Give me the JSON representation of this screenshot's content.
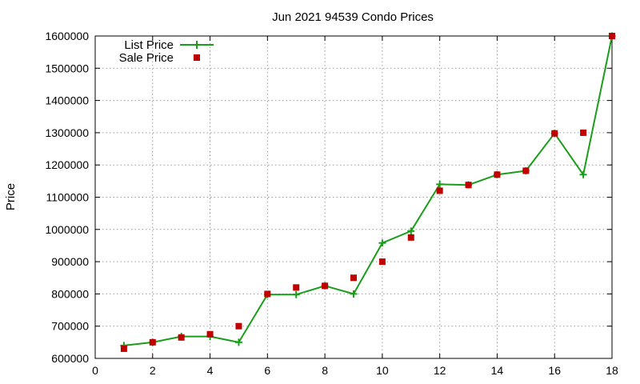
{
  "chart_data": {
    "type": "line",
    "title": "Jun 2021 94539 Condo Prices",
    "xlabel": "",
    "ylabel": "Price",
    "xlim": [
      0,
      18
    ],
    "ylim": [
      600000,
      1600000
    ],
    "x_ticks": [
      0,
      2,
      4,
      6,
      8,
      10,
      12,
      14,
      16,
      18
    ],
    "y_ticks": [
      600000,
      700000,
      800000,
      900000,
      1000000,
      1100000,
      1200000,
      1300000,
      1400000,
      1500000,
      1600000
    ],
    "grid": true,
    "legend_position": "top-left",
    "series": [
      {
        "name": "List Price",
        "style": "line+plus-markers",
        "color": "#1a9e1a",
        "x": [
          1,
          2,
          3,
          4,
          5,
          6,
          7,
          8,
          9,
          10,
          11,
          12,
          13,
          14,
          15,
          16,
          17,
          18
        ],
        "values": [
          640000,
          650000,
          668000,
          668000,
          650000,
          798000,
          798000,
          825000,
          800000,
          958000,
          995000,
          1140000,
          1138000,
          1170000,
          1182000,
          1298000,
          1170000,
          1600000
        ]
      },
      {
        "name": "Sale Price",
        "style": "square-markers",
        "color": "#c00000",
        "x": [
          1,
          2,
          3,
          4,
          5,
          6,
          7,
          8,
          9,
          10,
          11,
          12,
          13,
          14,
          15,
          16,
          17,
          18
        ],
        "values": [
          630000,
          650000,
          665000,
          675000,
          700000,
          800000,
          820000,
          825000,
          850000,
          900000,
          975000,
          1120000,
          1138000,
          1170000,
          1182000,
          1298000,
          1300000,
          1600000
        ]
      }
    ]
  }
}
